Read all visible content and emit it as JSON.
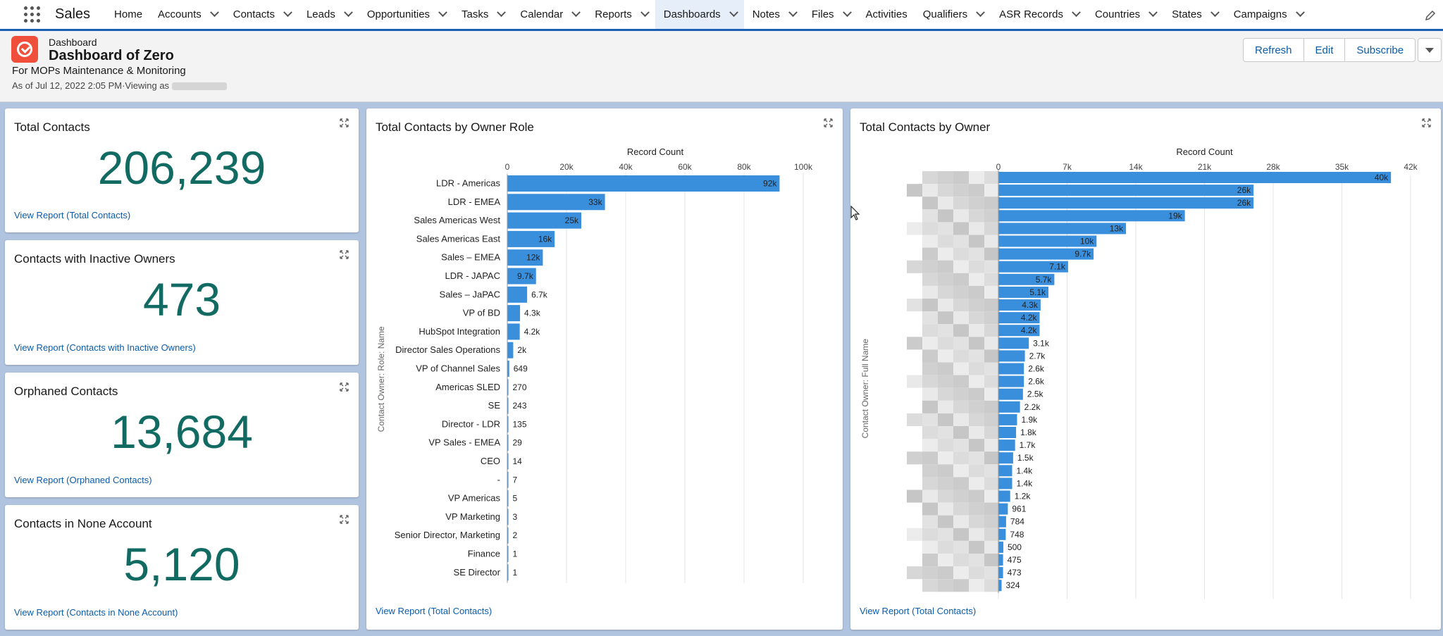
{
  "nav": {
    "app_name": "Sales",
    "items": [
      {
        "label": "Home",
        "chevron": false
      },
      {
        "label": "Accounts",
        "chevron": true
      },
      {
        "label": "Contacts",
        "chevron": true
      },
      {
        "label": "Leads",
        "chevron": true
      },
      {
        "label": "Opportunities",
        "chevron": true
      },
      {
        "label": "Tasks",
        "chevron": true
      },
      {
        "label": "Calendar",
        "chevron": true
      },
      {
        "label": "Reports",
        "chevron": true
      },
      {
        "label": "Dashboards",
        "chevron": true,
        "active": true
      },
      {
        "label": "Notes",
        "chevron": true
      },
      {
        "label": "Files",
        "chevron": true
      },
      {
        "label": "Activities",
        "chevron": false
      },
      {
        "label": "Qualifiers",
        "chevron": true
      },
      {
        "label": "ASR Records",
        "chevron": true
      },
      {
        "label": "Countries",
        "chevron": true
      },
      {
        "label": "States",
        "chevron": true
      },
      {
        "label": "Campaigns",
        "chevron": true
      }
    ]
  },
  "header": {
    "object_label": "Dashboard",
    "title": "Dashboard of Zero",
    "subtitle": "For MOPs Maintenance & Monitoring",
    "as_of": "As of Jul 12, 2022 2:05 PM·Viewing as",
    "buttons": {
      "refresh": "Refresh",
      "edit": "Edit",
      "subscribe": "Subscribe"
    }
  },
  "metrics": [
    {
      "title": "Total Contacts",
      "value": "206,239",
      "link": "View Report (Total Contacts)"
    },
    {
      "title": "Contacts with Inactive Owners",
      "value": "473",
      "link": "View Report (Contacts with Inactive Owners)"
    },
    {
      "title": "Orphaned Contacts",
      "value": "13,684",
      "link": "View Report (Orphaned Contacts)"
    },
    {
      "title": "Contacts in None Account",
      "value": "5,120",
      "link": "View Report (Contacts in None Account)"
    }
  ],
  "colors": {
    "bar": "#3a8fdd",
    "metric": "#126b63",
    "link": "#0b5cab",
    "accent": "#1b5fb5"
  },
  "chart_role": {
    "title": "Total Contacts by Owner Role",
    "link": "View Report (Total Contacts)",
    "xlabel": "Record Count",
    "ylabel": "Contact Owner: Role: Name",
    "ticks": [
      "0",
      "20k",
      "40k",
      "60k",
      "80k",
      "100k"
    ],
    "xmax": 100000
  },
  "chart_owner": {
    "title": "Total Contacts by Owner",
    "link": "View Report (Total Contacts)",
    "xlabel": "Record Count",
    "ylabel": "Contact Owner: Full Name",
    "ticks": [
      "0",
      "7k",
      "14k",
      "21k",
      "28k",
      "35k",
      "42k"
    ],
    "xmax": 42000
  },
  "chart_data": [
    {
      "type": "bar",
      "orientation": "horizontal",
      "title": "Total Contacts by Owner Role",
      "xlabel": "Record Count",
      "ylabel": "Contact Owner: Role: Name",
      "xlim": [
        0,
        100000
      ],
      "categories": [
        "LDR - Americas",
        "LDR - EMEA",
        "Sales Americas West",
        "Sales Americas East",
        "Sales – EMEA",
        "LDR - JAPAC",
        "Sales – JaPAC",
        "VP of BD",
        "HubSpot Integration",
        "Director Sales Operations",
        "VP of Channel Sales",
        "Americas SLED",
        "SE",
        "Director - LDR",
        "VP Sales - EMEA",
        "CEO",
        "-",
        "VP Americas",
        "VP Marketing",
        "Senior Director, Marketing",
        "Finance",
        "SE Director"
      ],
      "values": [
        92000,
        33000,
        25000,
        16000,
        12000,
        9700,
        6700,
        4300,
        4200,
        2000,
        649,
        270,
        243,
        135,
        29,
        14,
        7,
        5,
        3,
        2,
        1,
        1
      ],
      "labels": [
        "92k",
        "33k",
        "25k",
        "16k",
        "12k",
        "9.7k",
        "6.7k",
        "4.3k",
        "4.2k",
        "2k",
        "649",
        "270",
        "243",
        "135",
        "29",
        "14",
        "7",
        "5",
        "3",
        "2",
        "1",
        "1"
      ]
    },
    {
      "type": "bar",
      "orientation": "horizontal",
      "title": "Total Contacts by Owner",
      "xlabel": "Record Count",
      "ylabel": "Contact Owner: Full Name",
      "xlim": [
        0,
        42000
      ],
      "values": [
        40000,
        26000,
        26000,
        19000,
        13000,
        10000,
        9700,
        7100,
        5700,
        5100,
        4300,
        4200,
        4200,
        3100,
        2700,
        2600,
        2600,
        2500,
        2200,
        1900,
        1800,
        1700,
        1500,
        1400,
        1400,
        1200,
        961,
        784,
        748,
        500,
        475,
        473,
        324
      ],
      "labels": [
        "40k",
        "26k",
        "26k",
        "19k",
        "13k",
        "10k",
        "9.7k",
        "7.1k",
        "5.7k",
        "5.1k",
        "4.3k",
        "4.2k",
        "4.2k",
        "3.1k",
        "2.7k",
        "2.6k",
        "2.6k",
        "2.5k",
        "2.2k",
        "1.9k",
        "1.8k",
        "1.7k",
        "1.5k",
        "1.4k",
        "1.4k",
        "1.2k",
        "961",
        "784",
        "748",
        "500",
        "475",
        "473",
        "324"
      ]
    }
  ]
}
